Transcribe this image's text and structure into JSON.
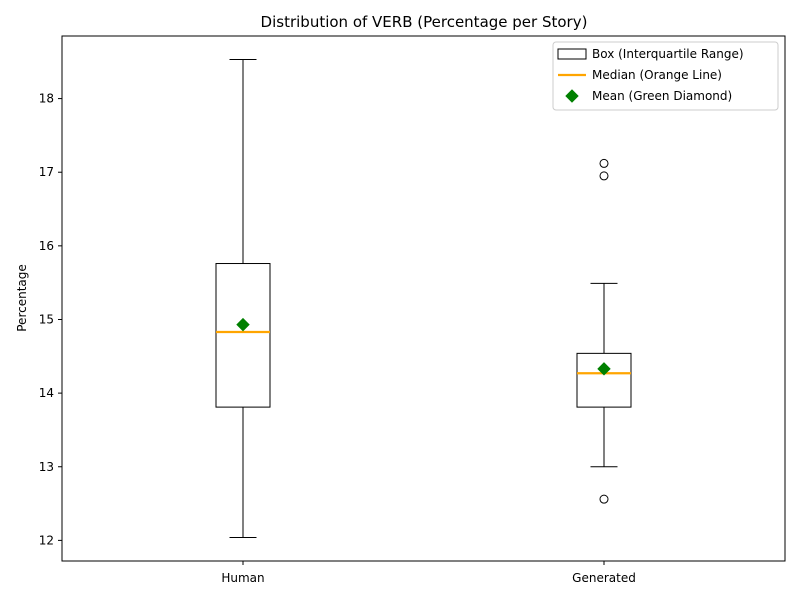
{
  "chart_data": {
    "type": "boxplot",
    "title": "Distribution of VERB (Percentage per Story)",
    "xlabel": "",
    "ylabel": "Percentage",
    "ylim": [
      11.72,
      18.85
    ],
    "yticks": [
      "12",
      "13",
      "14",
      "15",
      "16",
      "17",
      "18"
    ],
    "ytick_values": [
      12,
      13,
      14,
      15,
      16,
      17,
      18
    ],
    "grid": false,
    "legend_position": "top-right",
    "categories": [
      "Human",
      "Generated"
    ],
    "boxes": [
      {
        "label": "Human",
        "whisker_low": 12.04,
        "q1": 13.81,
        "median": 14.83,
        "q3": 15.76,
        "whisker_high": 18.53,
        "mean": 14.93,
        "outliers": []
      },
      {
        "label": "Generated",
        "whisker_low": 13.0,
        "q1": 13.81,
        "median": 14.27,
        "q3": 14.54,
        "whisker_high": 15.49,
        "mean": 14.33,
        "outliers": [
          12.56,
          16.95,
          17.12
        ]
      }
    ],
    "legend": [
      {
        "kind": "box",
        "label": "Box (Interquartile Range)"
      },
      {
        "kind": "median",
        "label": "Median (Orange Line)"
      },
      {
        "kind": "mean",
        "label": "Mean (Green Diamond)"
      }
    ],
    "colors": {
      "box": "#000000",
      "median": "#ffa500",
      "mean": "#008000",
      "outlier": "#000000"
    }
  }
}
